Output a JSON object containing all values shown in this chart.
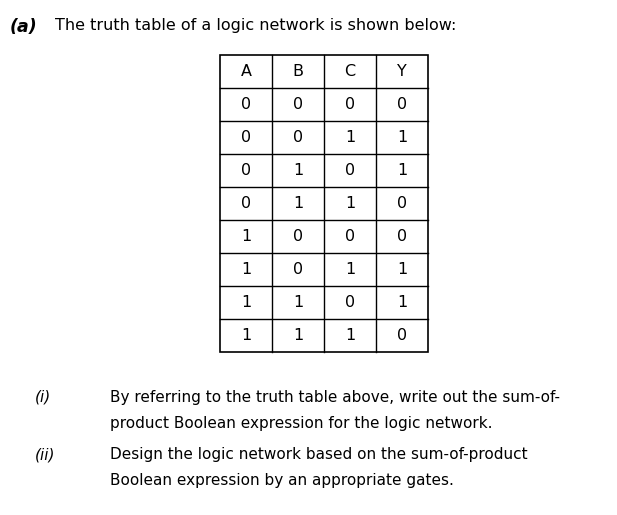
{
  "title_label": "(a)",
  "title_text": "The truth table of a logic network is shown below:",
  "table_headers": [
    "A",
    "B",
    "C",
    "Y"
  ],
  "table_data": [
    [
      0,
      0,
      0,
      0
    ],
    [
      0,
      0,
      1,
      1
    ],
    [
      0,
      1,
      0,
      1
    ],
    [
      0,
      1,
      1,
      0
    ],
    [
      1,
      0,
      0,
      0
    ],
    [
      1,
      0,
      1,
      1
    ],
    [
      1,
      1,
      0,
      1
    ],
    [
      1,
      1,
      1,
      0
    ]
  ],
  "question_i_label": "(i)",
  "question_i_text1": "By referring to the truth table above, write out the sum-of-",
  "question_i_text2": "product Boolean expression for the logic network.",
  "question_ii_label": "(ii)",
  "question_ii_text1": "Design the logic network based on the sum-of-product",
  "question_ii_text2": "Boolean expression by an appropriate gates.",
  "bg_color": "#ffffff",
  "text_color": "#000000",
  "table_line_color": "#000000",
  "font_size_title": 11.5,
  "font_size_table": 11.5,
  "font_size_questions": 11.0,
  "title_label_fontsize": 12.5
}
